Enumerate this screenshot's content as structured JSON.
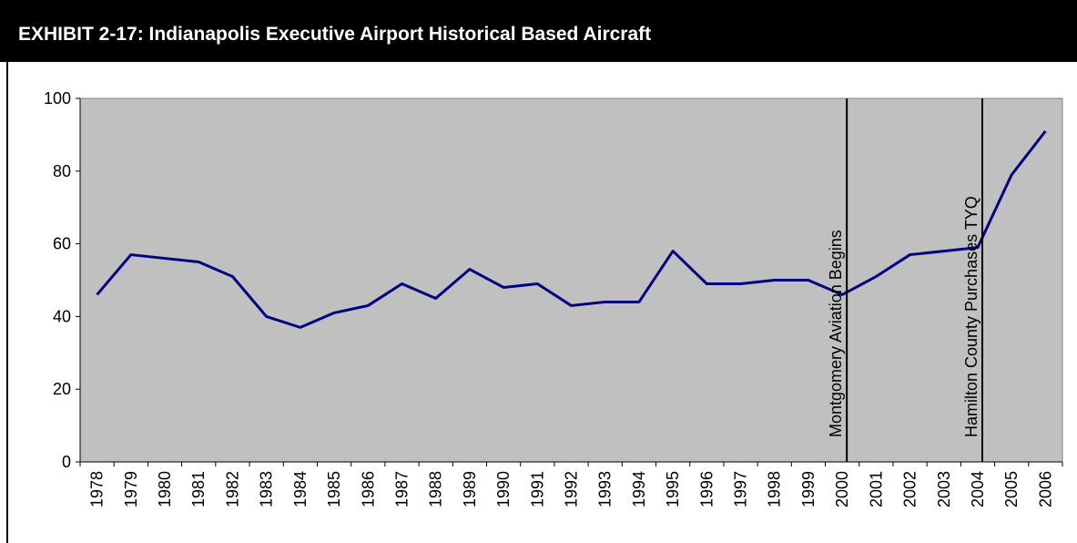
{
  "chart_data": {
    "type": "line",
    "title": "EXHIBIT 2-17: Indianapolis Executive Airport Historical Based Aircraft",
    "categories": [
      "1978",
      "1979",
      "1980",
      "1981",
      "1982",
      "1983",
      "1984",
      "1985",
      "1986",
      "1987",
      "1988",
      "1989",
      "1990",
      "1991",
      "1992",
      "1993",
      "1994",
      "1995",
      "1996",
      "1997",
      "1998",
      "1999",
      "2000",
      "2001",
      "2002",
      "2003",
      "2004",
      "2005",
      "2006"
    ],
    "series": [
      {
        "color": "#000080",
        "values": [
          46,
          57,
          56,
          55,
          51,
          40,
          37,
          41,
          43,
          49,
          45,
          53,
          48,
          49,
          43,
          44,
          44,
          58,
          49,
          49,
          50,
          50,
          46,
          51,
          57,
          58,
          59,
          79,
          91
        ]
      }
    ],
    "ylim": [
      0,
      100
    ],
    "yticks": [
      0,
      20,
      40,
      60,
      80,
      100
    ],
    "grid": false,
    "annotations": [
      {
        "at": "2000",
        "text": "Montgomery Aviation Begins"
      },
      {
        "at": "2004",
        "text": "Hamilton County Purchases TYQ"
      }
    ]
  }
}
